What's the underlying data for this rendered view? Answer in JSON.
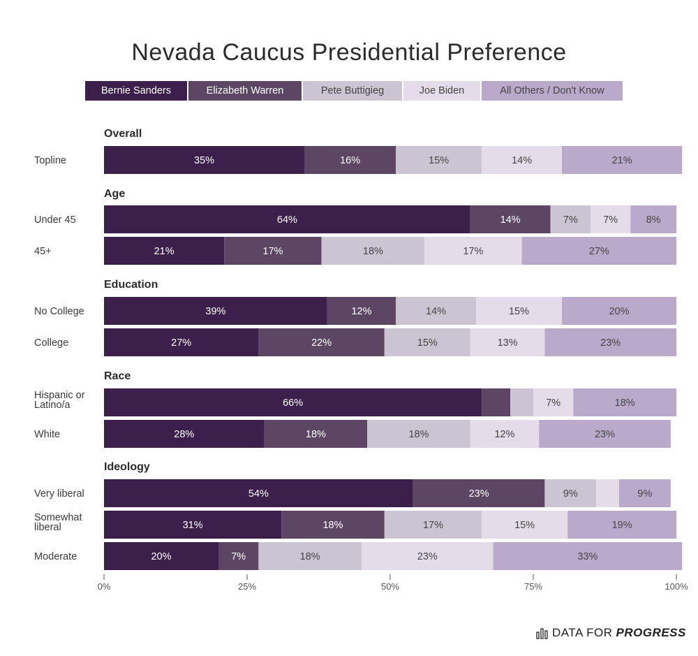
{
  "chart_data": {
    "type": "bar",
    "orientation": "horizontal-stacked",
    "title": "Nevada Caucus Presidential Preference",
    "series": [
      {
        "name": "Bernie Sanders",
        "color": "#3c1f4a",
        "text_color": "#ffffff"
      },
      {
        "name": "Elizabeth Warren",
        "color": "#5d4664",
        "text_color": "#ffffff"
      },
      {
        "name": "Pete Buttigieg",
        "color": "#cbc5d3",
        "text_color": "#444444"
      },
      {
        "name": "Joe Biden",
        "color": "#e4dde9",
        "text_color": "#444444"
      },
      {
        "name": "All Others / Don't Know",
        "color": "#b9aacb",
        "text_color": "#444444"
      }
    ],
    "groups": [
      {
        "name": "Overall",
        "rows": [
          {
            "label": "Topline",
            "values": [
              35,
              16,
              15,
              14,
              21
            ],
            "labels": [
              "35%",
              "16%",
              "15%",
              "14%",
              "21%"
            ]
          }
        ]
      },
      {
        "name": "Age",
        "rows": [
          {
            "label": "Under 45",
            "values": [
              64,
              14,
              7,
              7,
              8
            ],
            "labels": [
              "64%",
              "14%",
              "7%",
              "7%",
              "8%"
            ]
          },
          {
            "label": "45+",
            "values": [
              21,
              17,
              18,
              17,
              27
            ],
            "labels": [
              "21%",
              "17%",
              "18%",
              "17%",
              "27%"
            ]
          }
        ]
      },
      {
        "name": "Education",
        "rows": [
          {
            "label": "No College",
            "values": [
              39,
              12,
              14,
              15,
              20
            ],
            "labels": [
              "39%",
              "12%",
              "14%",
              "15%",
              "20%"
            ]
          },
          {
            "label": "College",
            "values": [
              27,
              22,
              15,
              13,
              23
            ],
            "labels": [
              "27%",
              "22%",
              "15%",
              "13%",
              "23%"
            ]
          }
        ]
      },
      {
        "name": "Race",
        "rows": [
          {
            "label": "Hispanic or Latino/a",
            "values": [
              66,
              5,
              4,
              7,
              18
            ],
            "labels": [
              "66%",
              "",
              "",
              "7%",
              "18%"
            ]
          },
          {
            "label": "White",
            "values": [
              28,
              18,
              18,
              12,
              23
            ],
            "labels": [
              "28%",
              "18%",
              "18%",
              "12%",
              "23%"
            ]
          }
        ]
      },
      {
        "name": "Ideology",
        "rows": [
          {
            "label": "Very liberal",
            "values": [
              54,
              23,
              9,
              4,
              9
            ],
            "labels": [
              "54%",
              "23%",
              "9%",
              "",
              "9%"
            ]
          },
          {
            "label": "Somewhat liberal",
            "values": [
              31,
              18,
              17,
              15,
              19
            ],
            "labels": [
              "31%",
              "18%",
              "17%",
              "15%",
              "19%"
            ]
          },
          {
            "label": "Moderate",
            "values": [
              20,
              7,
              18,
              23,
              33
            ],
            "labels": [
              "20%",
              "7%",
              "18%",
              "23%",
              "33%"
            ]
          }
        ]
      }
    ],
    "x_ticks": [
      "0%",
      "25%",
      "50%",
      "75%",
      "100%"
    ],
    "xlim": [
      0,
      100
    ],
    "grid": false,
    "legend_position": "top"
  },
  "footer": {
    "brand_prefix": "DATA FOR",
    "brand_emphasis": "PROGRESS",
    "icon": "bar-chart-icon"
  }
}
